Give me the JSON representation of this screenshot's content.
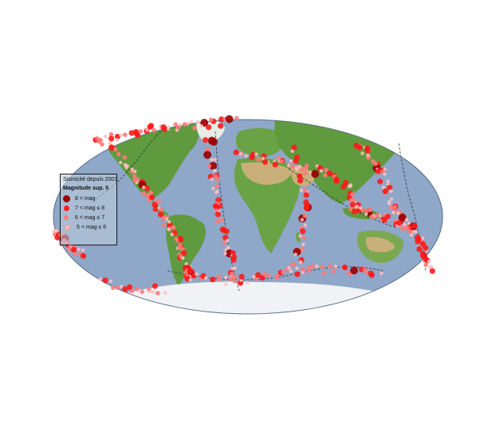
{
  "legend": {
    "title": "Sismicité depuis 2003",
    "subtitle": "Magnitude sup. 5",
    "entries": [
      {
        "label": "8 < mag",
        "color": "#990000",
        "icon": "large-dark-red-dot"
      },
      {
        "label": "7 < mag ≤ 8",
        "color": "#ff1a1a",
        "icon": "red-dot"
      },
      {
        "label": "6 < mag ≤ 7",
        "color": "#ff7a7a",
        "icon": "pink-dot"
      },
      {
        "label": "5 < mag ≤ 6",
        "color": "#ffc0c0",
        "icon": "light-pink-dot"
      }
    ]
  },
  "colors": {
    "ocean": "#8fa7c8",
    "land": "#5f9a3e",
    "desert": "#c9b07a",
    "ice": "#f0f2f5",
    "plate_boundary": "#333333"
  }
}
